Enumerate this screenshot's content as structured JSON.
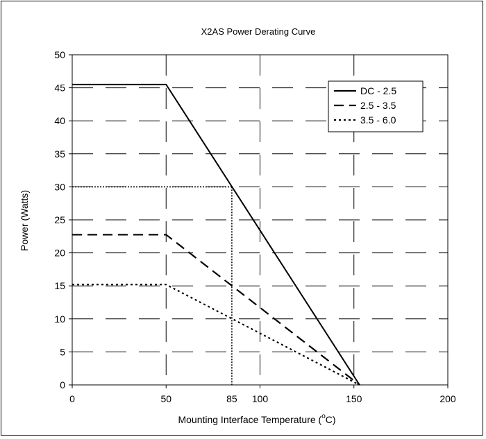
{
  "chart_data": {
    "type": "line",
    "title": "X2AS Power Derating Curve",
    "xlabel": "Mounting Interface Temperature (",
    "xlabel_sup": "o",
    "xlabel_suffix": "C)",
    "ylabel": "Power (Watts)",
    "xlim": [
      0,
      200
    ],
    "ylim": [
      0,
      50
    ],
    "x_ticks": [
      0,
      50,
      100,
      150,
      200
    ],
    "y_ticks": [
      0,
      5,
      10,
      15,
      20,
      25,
      30,
      35,
      40,
      45,
      50
    ],
    "x_annotation": "85",
    "grid": true,
    "grid_style": "dashed",
    "legend_position": "top-right",
    "series": [
      {
        "name": "DC - 2.5",
        "style": "solid",
        "x": [
          0,
          50,
          153
        ],
        "y": [
          45.5,
          45.5,
          0
        ]
      },
      {
        "name": "2.5 - 3.5",
        "style": "dashed",
        "x": [
          0,
          50,
          153
        ],
        "y": [
          22.75,
          22.75,
          0
        ]
      },
      {
        "name": "3.5 - 6.0",
        "style": "dotted",
        "x": [
          0,
          50,
          153
        ],
        "y": [
          15.2,
          15.2,
          0
        ]
      }
    ],
    "reference_lines": [
      {
        "style": "dotted",
        "x": [
          0,
          85
        ],
        "y": [
          30,
          30
        ]
      },
      {
        "style": "dotted",
        "x": [
          85,
          85
        ],
        "y": [
          30,
          0
        ]
      }
    ]
  }
}
